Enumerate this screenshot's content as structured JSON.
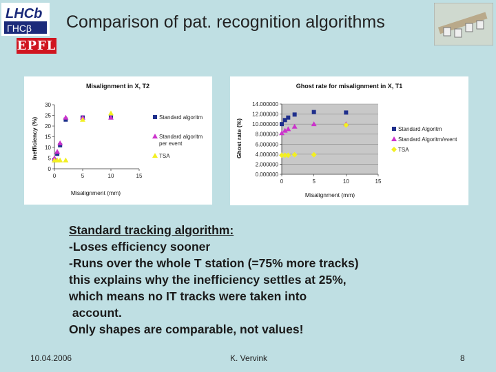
{
  "slide": {
    "title": "Comparison of pat. recognition algorithms",
    "logos": {
      "lhcb": "LHCb",
      "epfl": "EPFL"
    },
    "notes": [
      "Standard tracking algorithm:",
      "-Loses efficiency sooner",
      "-Runs over the whole T station (=75% more tracks)",
      "this explains why the inefficiency settles at 25%,",
      "which means no IT tracks were taken into",
      " account.",
      "Only shapes are comparable, not values!"
    ],
    "footer": {
      "date": "10.04.2006",
      "author": "K. Vervink",
      "page": "8"
    }
  },
  "colors": {
    "background": "#bfdfe3",
    "standard": "#1f2f8c",
    "standard_per_event": "#cc33cc",
    "tsa": "#f2ef22",
    "plot_bg": "#c8c8c8"
  },
  "chart_data": [
    {
      "type": "scatter",
      "title": "Misalignment in X, T2",
      "xlabel": "Misalignment (mm)",
      "ylabel": "Inefficiency (%)",
      "xlim": [
        0,
        15
      ],
      "ylim": [
        0,
        30
      ],
      "xticks": [
        "0",
        "5",
        "10",
        "15"
      ],
      "yticks": [
        "0",
        "5",
        "10",
        "15",
        "20",
        "25",
        "30"
      ],
      "grid": false,
      "legend": "right",
      "series": [
        {
          "name": "Standard algoritm",
          "marker": "square",
          "color": "#1f2f8c",
          "x": [
            0,
            0.5,
            1,
            2,
            5,
            10
          ],
          "y": [
            4,
            7,
            11,
            23,
            24,
            24
          ]
        },
        {
          "name": "Standard algoritm per event",
          "marker": "triangle",
          "color": "#cc33cc",
          "x": [
            0,
            0.5,
            1,
            2,
            5,
            10
          ],
          "y": [
            5,
            8,
            12,
            24,
            24,
            24
          ]
        },
        {
          "name": "TSA",
          "marker": "triangle",
          "color": "#f2ef22",
          "x": [
            0,
            0.5,
            1,
            2,
            5,
            10
          ],
          "y": [
            4,
            4,
            4,
            4,
            23,
            26
          ]
        }
      ]
    },
    {
      "type": "scatter",
      "title": "Ghost rate for misalignment in X, T1",
      "xlabel": "Misalignment (mm)",
      "ylabel": "Ghost rate (%)",
      "xlim": [
        0,
        15
      ],
      "ylim": [
        0,
        14
      ],
      "xticks": [
        "0",
        "5",
        "10",
        "15"
      ],
      "yticks": [
        "0.000000",
        "2.000000",
        "4.000000",
        "6.000000",
        "8.000000",
        "10.000000",
        "12.000000",
        "14.000000"
      ],
      "grid": true,
      "legend": "right",
      "series": [
        {
          "name": "Standard Algoritm",
          "marker": "square",
          "color": "#1f2f8c",
          "x": [
            0,
            0.5,
            1,
            2,
            5,
            10
          ],
          "y": [
            10,
            10.8,
            11.3,
            11.9,
            12.4,
            12.3
          ]
        },
        {
          "name": "Standard Algoritm/event",
          "marker": "triangle",
          "color": "#cc33cc",
          "x": [
            0,
            0.5,
            1,
            2,
            5,
            10
          ],
          "y": [
            8.2,
            8.7,
            9,
            9.5,
            10,
            10
          ]
        },
        {
          "name": "TSA",
          "marker": "diamond",
          "color": "#f2ef22",
          "x": [
            0,
            0.5,
            1,
            2,
            5,
            10
          ],
          "y": [
            3.8,
            3.8,
            3.8,
            3.9,
            3.9,
            9.8
          ]
        }
      ]
    }
  ]
}
